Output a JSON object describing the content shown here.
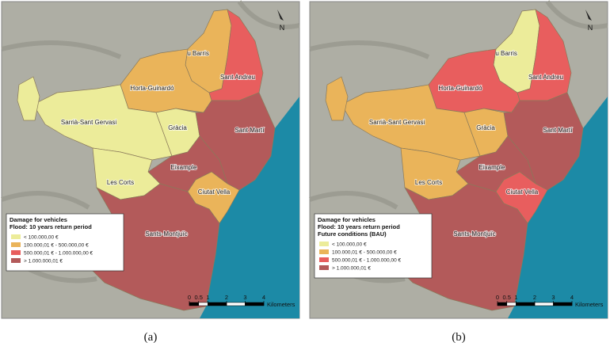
{
  "panels": [
    {
      "caption": "(a)",
      "north": "N",
      "legend": {
        "title": [
          "Damage for vehicles",
          "Flood: 10 years return period"
        ],
        "items": [
          {
            "label": "< 100.000,00 €",
            "color": "#ecec9a"
          },
          {
            "label": "100.000,01 € - 500.000,00 €",
            "color": "#eab45a"
          },
          {
            "label": "500.000,01 € - 1.000.000,00 €",
            "color": "#e85e5e"
          },
          {
            "label": "> 1.000.000,01 €",
            "color": "#b35a5a"
          }
        ]
      },
      "districts": [
        {
          "name": "Nou Barris",
          "class": 1
        },
        {
          "name": "Sant Andreu",
          "class": 2
        },
        {
          "name": "Horta-Guinardó",
          "class": 1
        },
        {
          "name": "Sarrià-Sant Gervasi",
          "class": 0
        },
        {
          "name": "Gràcia",
          "class": 0
        },
        {
          "name": "Sant Martí",
          "class": 3
        },
        {
          "name": "Eixample",
          "class": 3
        },
        {
          "name": "Les Corts",
          "class": 0
        },
        {
          "name": "Ciutat Vella",
          "class": 1
        },
        {
          "name": "Sants-Montjuïc",
          "class": 3
        }
      ],
      "scale": {
        "ticks": [
          0,
          0.5,
          1,
          2,
          3,
          4
        ],
        "unit": "Kilometers"
      }
    },
    {
      "caption": "(b)",
      "north": "N",
      "legend": {
        "title": [
          "Damage for vehicles",
          "Flood: 10 years return period",
          "Future conditions (BAU)"
        ],
        "items": [
          {
            "label": "< 100.000,00 €",
            "color": "#ecec9a"
          },
          {
            "label": "100.000,01 € - 500.000,00 €",
            "color": "#eab45a"
          },
          {
            "label": "500.000,01 € - 1.000.000,00 €",
            "color": "#e85e5e"
          },
          {
            "label": "> 1.000.000,01 €",
            "color": "#b35a5a"
          }
        ]
      },
      "districts": [
        {
          "name": "Nou Barris",
          "class": 0
        },
        {
          "name": "Sant Andreu",
          "class": 2
        },
        {
          "name": "Horta-Guinardó",
          "class": 2
        },
        {
          "name": "Sarrià-Sant Gervasi",
          "class": 1
        },
        {
          "name": "Gràcia",
          "class": 1
        },
        {
          "name": "Sant Martí",
          "class": 3
        },
        {
          "name": "Eixample",
          "class": 3
        },
        {
          "name": "Les Corts",
          "class": 1
        },
        {
          "name": "Ciutat Vella",
          "class": 2
        },
        {
          "name": "Sants-Montjuïc",
          "class": 3
        }
      ],
      "scale": {
        "ticks": [
          0,
          0.5,
          1,
          2,
          3,
          4
        ],
        "unit": "Kilometers"
      }
    }
  ]
}
